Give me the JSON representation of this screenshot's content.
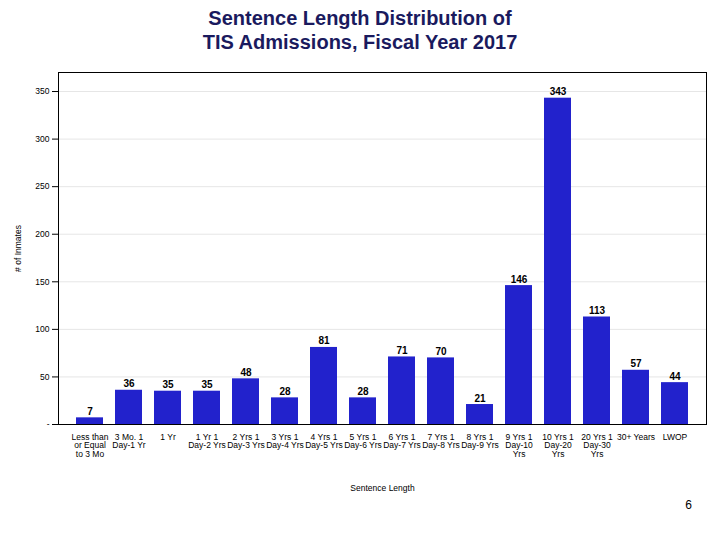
{
  "chart_data": {
    "type": "bar",
    "title": "Sentence Length Distribution of\nTIS Admissions, Fiscal Year 2017",
    "xlabel": "Sentence Length",
    "ylabel": "# of Inmates",
    "categories": [
      "Less than\nor Equal\nto 3 Mo",
      "3 Mo. 1\nDay-1 Yr",
      "1 Yr",
      "1 Yr 1\nDay-2 Yrs",
      "2 Yrs 1\nDay-3 Yrs",
      "3 Yrs 1\nDay-4 Yrs",
      "4 Yrs 1\nDay-5 Yrs",
      "5 Yrs 1\nDay-6 Yrs",
      "6 Yrs 1\nDay-7 Yrs",
      "7 Yrs 1\nDay-8 Yrs",
      "8 Yrs 1\nDay-9 Yrs",
      "9 Yrs 1\nDay-10\nYrs",
      "10 Yrs 1\nDay-20\nYrs",
      "20 Yrs 1\nDay-30\nYrs",
      "30+ Years",
      "LWOP"
    ],
    "values": [
      7,
      36,
      35,
      35,
      48,
      28,
      81,
      28,
      71,
      70,
      21,
      146,
      343,
      113,
      57,
      44
    ],
    "color": "#2222cc",
    "ylim": [
      0,
      370
    ],
    "yticks": [
      {
        "value": 0,
        "label": "-"
      },
      50,
      100,
      150,
      200,
      250,
      300,
      350
    ],
    "grid": true,
    "data_labels": true,
    "annotations": [
      "6"
    ]
  }
}
